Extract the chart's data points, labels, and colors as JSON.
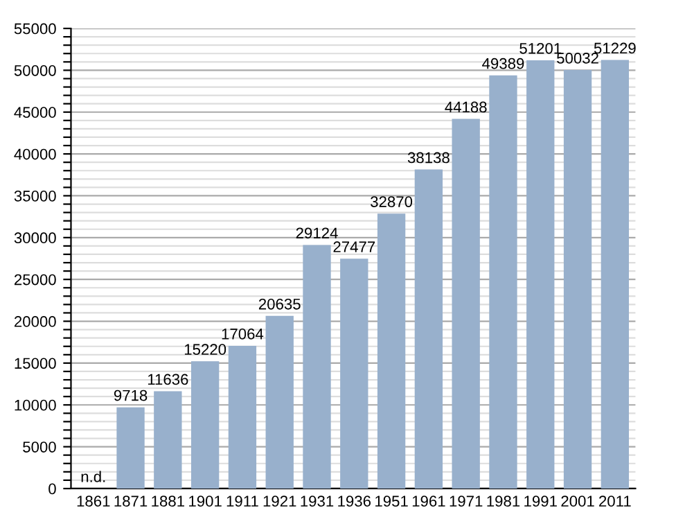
{
  "chart_data": {
    "type": "bar",
    "categories": [
      "1861",
      "1871",
      "1881",
      "1901",
      "1911",
      "1921",
      "1931",
      "1936",
      "1951",
      "1961",
      "1971",
      "1981",
      "1991",
      "2001",
      "2011"
    ],
    "values": [
      null,
      9718,
      11636,
      15220,
      17064,
      20635,
      29124,
      27477,
      32870,
      38138,
      44188,
      49389,
      51201,
      50032,
      51229
    ],
    "value_labels": [
      "n.d.",
      "9718",
      "11636",
      "15220",
      "17064",
      "20635",
      "29124",
      "27477",
      "32870",
      "38138",
      "44188",
      "49389",
      "51201",
      "50032",
      "51229"
    ],
    "color": "#98b0cc",
    "ylim": [
      0,
      55000
    ],
    "yticks": [
      0,
      {
        "value": 1000,
        "label": null
      },
      {
        "value": 2000,
        "label": null
      },
      {
        "value": 3000,
        "label": null
      },
      {
        "value": 4000,
        "label": null
      },
      5000,
      {
        "value": 6000,
        "label": null
      },
      {
        "value": 7000,
        "label": null
      },
      {
        "value": 8000,
        "label": null
      },
      {
        "value": 9000,
        "label": null
      },
      10000,
      {
        "value": 11000,
        "label": null
      },
      {
        "value": 12000,
        "label": null
      },
      {
        "value": 13000,
        "label": null
      },
      {
        "value": 14000,
        "label": null
      },
      15000,
      {
        "value": 16000,
        "label": null
      },
      {
        "value": 17000,
        "label": null
      },
      {
        "value": 18000,
        "label": null
      },
      {
        "value": 19000,
        "label": null
      },
      20000,
      {
        "value": 21000,
        "label": null
      },
      {
        "value": 22000,
        "label": null
      },
      {
        "value": 23000,
        "label": null
      },
      {
        "value": 24000,
        "label": null
      },
      25000,
      {
        "value": 26000,
        "label": null
      },
      {
        "value": 27000,
        "label": null
      },
      {
        "value": 28000,
        "label": null
      },
      {
        "value": 29000,
        "label": null
      },
      30000,
      {
        "value": 31000,
        "label": null
      },
      {
        "value": 32000,
        "label": null
      },
      {
        "value": 33000,
        "label": null
      },
      {
        "value": 34000,
        "label": null
      },
      35000,
      {
        "value": 36000,
        "label": null
      },
      {
        "value": 37000,
        "label": null
      },
      {
        "value": 38000,
        "label": null
      },
      {
        "value": 39000,
        "label": null
      },
      40000,
      {
        "value": 41000,
        "label": null
      },
      {
        "value": 42000,
        "label": null
      },
      {
        "value": 43000,
        "label": null
      },
      {
        "value": 44000,
        "label": null
      },
      45000,
      {
        "value": 46000,
        "label": null
      },
      {
        "value": 47000,
        "label": null
      },
      {
        "value": 48000,
        "label": null
      },
      {
        "value": 49000,
        "label": null
      },
      50000,
      {
        "value": 51000,
        "label": null
      },
      {
        "value": 52000,
        "label": null
      },
      {
        "value": 53000,
        "label": null
      },
      {
        "value": 54000,
        "label": null
      },
      55000
    ],
    "grid": "y"
  }
}
